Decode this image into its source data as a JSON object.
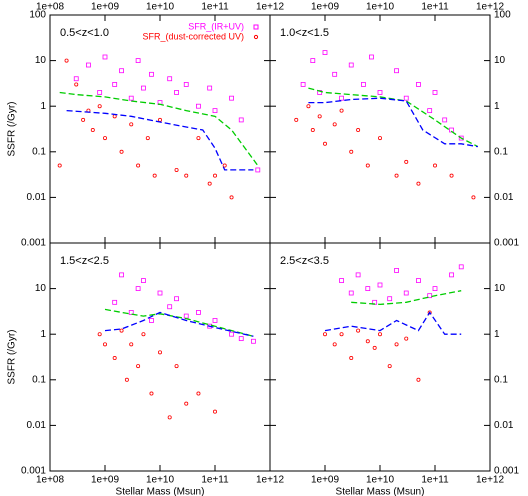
{
  "chart_data": [
    {
      "type": "scatter",
      "title": "0.5<z<1.0",
      "ylabel": "SSFR (/Gyr)",
      "log_x": true,
      "log_y": true,
      "legend": "top-right",
      "xlim": [
        100000000,
        1000000000000
      ],
      "ylim": [
        0.001,
        100
      ],
      "xticks": [
        {
          "value": 100000000,
          "label": "1e+08"
        },
        {
          "value": 1000000000,
          "label": "1e+09"
        },
        {
          "value": 10000000000,
          "label": "1e+10"
        },
        {
          "value": 100000000000,
          "label": "1e+11"
        },
        {
          "value": 1000000000000,
          "label": "1e+12"
        }
      ],
      "yticks": [
        100,
        10,
        1,
        0.1,
        0.01,
        0.001
      ],
      "series": [
        {
          "name": "SFR_(IR+UV)",
          "color": "#ff00ff",
          "marker": "square",
          "x": [
            300000000,
            500000000,
            800000000,
            1000000000,
            1500000000,
            2000000000,
            3000000000,
            4000000000,
            5000000000,
            7000000000,
            10000000000,
            15000000000,
            20000000000,
            30000000000,
            50000000000,
            80000000000,
            100000000000,
            200000000000,
            300000000000,
            600000000000
          ],
          "values": [
            4,
            8,
            2,
            12,
            3,
            6,
            1.5,
            10,
            2.5,
            5,
            1.2,
            4,
            2,
            3,
            1,
            2.5,
            0.8,
            1.5,
            0.5,
            0.04
          ]
        },
        {
          "name": "SFR_(dust-corrected UV)",
          "color": "#ff0000",
          "marker": "circle",
          "x": [
            150000000,
            200000000,
            300000000,
            400000000,
            600000000,
            800000000,
            1000000000,
            1500000000,
            2000000000,
            3000000000,
            4000000000,
            6000000000,
            8000000000,
            10000000000,
            20000000000,
            30000000000,
            50000000000,
            80000000000,
            100000000000,
            150000000000,
            200000000000,
            500000000
          ],
          "values": [
            0.05,
            10,
            3,
            0.5,
            0.3,
            1,
            0.2,
            0.6,
            0.1,
            0.4,
            0.05,
            0.2,
            0.03,
            0.5,
            0.04,
            0.03,
            0.2,
            0.02,
            0.03,
            0.05,
            0.01,
            0.8
          ]
        },
        {
          "color": "#00cc00",
          "marker": "dashed-line",
          "x": [
            150000000,
            300000000,
            1000000000,
            3000000000,
            10000000000,
            30000000000,
            100000000000,
            200000000000,
            600000000000
          ],
          "values": [
            2,
            1.8,
            1.6,
            1.3,
            1.1,
            0.8,
            0.6,
            0.3,
            0.05
          ]
        },
        {
          "color": "#0000ff",
          "marker": "dashed-line",
          "x": [
            200000000,
            1000000000,
            3000000000,
            10000000000,
            30000000000,
            60000000000,
            100000000000,
            150000000000,
            500000000000
          ],
          "values": [
            0.8,
            0.7,
            0.6,
            0.45,
            0.35,
            0.3,
            0.12,
            0.04,
            0.04
          ]
        }
      ]
    },
    {
      "type": "scatter",
      "title": "1.0<z<1.5",
      "log_x": true,
      "log_y": true,
      "xlim": [
        100000000,
        1000000000000
      ],
      "ylim": [
        0.001,
        100
      ],
      "xticks": [
        {
          "value": 1000000000,
          "label": "1e+09"
        },
        {
          "value": 10000000000,
          "label": "1e+10"
        },
        {
          "value": 100000000000,
          "label": "1e+11"
        },
        {
          "value": 1000000000000,
          "label": "1e+12"
        }
      ],
      "yticks": [
        100,
        10,
        1,
        0.1,
        0.01,
        0.001
      ],
      "series": [
        {
          "color": "#ff00ff",
          "marker": "square",
          "x": [
            400000000,
            600000000,
            800000000,
            1000000000,
            1500000000,
            2000000000,
            3000000000,
            5000000000,
            7000000000,
            10000000000,
            20000000000,
            30000000000,
            50000000000,
            80000000000,
            100000000000,
            150000000000,
            200000000000,
            300000000000
          ],
          "values": [
            3,
            10,
            2,
            15,
            5,
            1.5,
            8,
            3,
            12,
            2,
            6,
            1.5,
            3,
            0.8,
            2,
            0.5,
            0.3,
            0.2
          ]
        },
        {
          "color": "#ff0000",
          "marker": "circle",
          "x": [
            300000000,
            500000000,
            600000000,
            800000000,
            1000000000,
            1500000000,
            2000000000,
            3000000000,
            4000000000,
            6000000000,
            10000000000,
            20000000000,
            30000000000,
            50000000000,
            100000000000,
            200000000000,
            500000000000
          ],
          "values": [
            0.5,
            1,
            0.3,
            0.6,
            0.15,
            0.4,
            0.8,
            0.1,
            0.3,
            0.05,
            0.2,
            0.03,
            0.06,
            0.02,
            0.05,
            0.03,
            0.01
          ]
        },
        {
          "color": "#00cc00",
          "marker": "dashed-line",
          "x": [
            500000000,
            1000000000,
            3000000000,
            10000000000,
            30000000000,
            100000000000,
            300000000000,
            600000000000
          ],
          "values": [
            2.5,
            2,
            1.8,
            1.6,
            1.3,
            0.5,
            0.2,
            0.13
          ]
        },
        {
          "color": "#0000ff",
          "marker": "dashed-line",
          "x": [
            500000000,
            1000000000,
            3000000000,
            10000000000,
            30000000000,
            60000000000,
            150000000000,
            300000000000,
            600000000000
          ],
          "values": [
            1.2,
            1.2,
            1.4,
            1.5,
            1.3,
            0.3,
            0.15,
            0.15,
            0.13
          ]
        }
      ]
    },
    {
      "type": "scatter",
      "title": "1.5<z<2.5",
      "xlabel": "Stellar Mass  (Msun)",
      "ylabel": "SSFR (/Gyr)",
      "log_x": true,
      "log_y": true,
      "xlim": [
        100000000,
        1000000000000
      ],
      "ylim": [
        0.001,
        100
      ],
      "xticks": [
        {
          "value": 100000000,
          "label": "1e+08"
        },
        {
          "value": 1000000000,
          "label": "1e+09"
        },
        {
          "value": 10000000000,
          "label": "1e+10"
        },
        {
          "value": 100000000000,
          "label": "1e+11"
        },
        {
          "value": 1000000000000,
          "label": "1e+12"
        }
      ],
      "yticks": [
        10,
        1,
        0.1,
        0.01,
        0.001
      ],
      "series": [
        {
          "color": "#ff00ff",
          "marker": "square",
          "x": [
            1500000000,
            2000000000,
            3000000000,
            4000000000,
            5000000000,
            7000000000,
            10000000000,
            15000000000,
            20000000000,
            30000000000,
            50000000000,
            80000000000,
            100000000000,
            200000000000,
            300000000000,
            500000000000
          ],
          "values": [
            5,
            20,
            3,
            10,
            15,
            2,
            8,
            4,
            6,
            2.5,
            3,
            1.5,
            2,
            1,
            0.8,
            0.7
          ]
        },
        {
          "color": "#ff0000",
          "marker": "circle",
          "x": [
            800000000,
            1000000000,
            1500000000,
            2000000000,
            2500000000,
            3000000000,
            4000000000,
            5000000000,
            7000000000,
            10000000000,
            15000000000,
            20000000000,
            30000000000,
            50000000000,
            100000000000
          ],
          "values": [
            1,
            0.6,
            0.3,
            1.2,
            0.1,
            0.6,
            0.2,
            1,
            0.05,
            0.4,
            0.015,
            0.2,
            0.03,
            0.05,
            0.02
          ]
        },
        {
          "color": "#00cc00",
          "marker": "dashed-line",
          "x": [
            1000000000,
            2000000000,
            5000000000,
            10000000000,
            30000000000,
            100000000000,
            500000000000
          ],
          "values": [
            3.5,
            3,
            2.5,
            2.8,
            2.2,
            1.5,
            0.9
          ]
        },
        {
          "color": "#0000ff",
          "marker": "dashed-line",
          "x": [
            1000000000,
            2000000000,
            5000000000,
            10000000000,
            30000000000,
            100000000000,
            500000000000
          ],
          "values": [
            1.2,
            1.3,
            2,
            3,
            2,
            1.4,
            0.9
          ]
        }
      ]
    },
    {
      "type": "scatter",
      "title": "2.5<z<3.5",
      "xlabel": "Stellar Mass  (Msun)",
      "log_x": true,
      "log_y": true,
      "xlim": [
        100000000,
        1000000000000
      ],
      "ylim": [
        0.001,
        100
      ],
      "xticks": [
        {
          "value": 1000000000,
          "label": "1e+09"
        },
        {
          "value": 10000000000,
          "label": "1e+10"
        },
        {
          "value": 100000000000,
          "label": "1e+11"
        },
        {
          "value": 1000000000000,
          "label": "1e+12"
        }
      ],
      "yticks": [
        10,
        1,
        0.1,
        0.01,
        0.001
      ],
      "series": [
        {
          "color": "#ff00ff",
          "marker": "square",
          "x": [
            2000000000,
            3000000000,
            4000000000,
            6000000000,
            8000000000,
            10000000000,
            15000000000,
            20000000000,
            30000000000,
            50000000000,
            80000000000,
            100000000000,
            200000000000,
            300000000000
          ],
          "values": [
            15,
            8,
            20,
            10,
            5,
            12,
            6,
            25,
            8,
            15,
            7,
            10,
            20,
            30
          ]
        },
        {
          "color": "#ff0000",
          "marker": "circle",
          "x": [
            1000000000,
            1500000000,
            2000000000,
            3000000000,
            4000000000,
            6000000000,
            8000000000,
            10000000000,
            15000000000,
            20000000000,
            30000000000,
            50000000000,
            80000000000
          ],
          "values": [
            1,
            0.6,
            1,
            0.3,
            1.2,
            0.7,
            0.5,
            1,
            0.2,
            0.6,
            0.8,
            0.1,
            3
          ]
        },
        {
          "color": "#00cc00",
          "marker": "dashed-line",
          "x": [
            3000000000,
            10000000000,
            30000000000,
            100000000000,
            300000000000
          ],
          "values": [
            5,
            4.5,
            5,
            7,
            9
          ]
        },
        {
          "color": "#0000ff",
          "marker": "dashed-line",
          "x": [
            1000000000,
            3000000000,
            10000000000,
            20000000000,
            50000000000,
            80000000000,
            150000000000,
            300000000000
          ],
          "values": [
            1.2,
            1.5,
            1.2,
            2,
            1.2,
            3,
            1,
            1
          ]
        }
      ]
    }
  ]
}
